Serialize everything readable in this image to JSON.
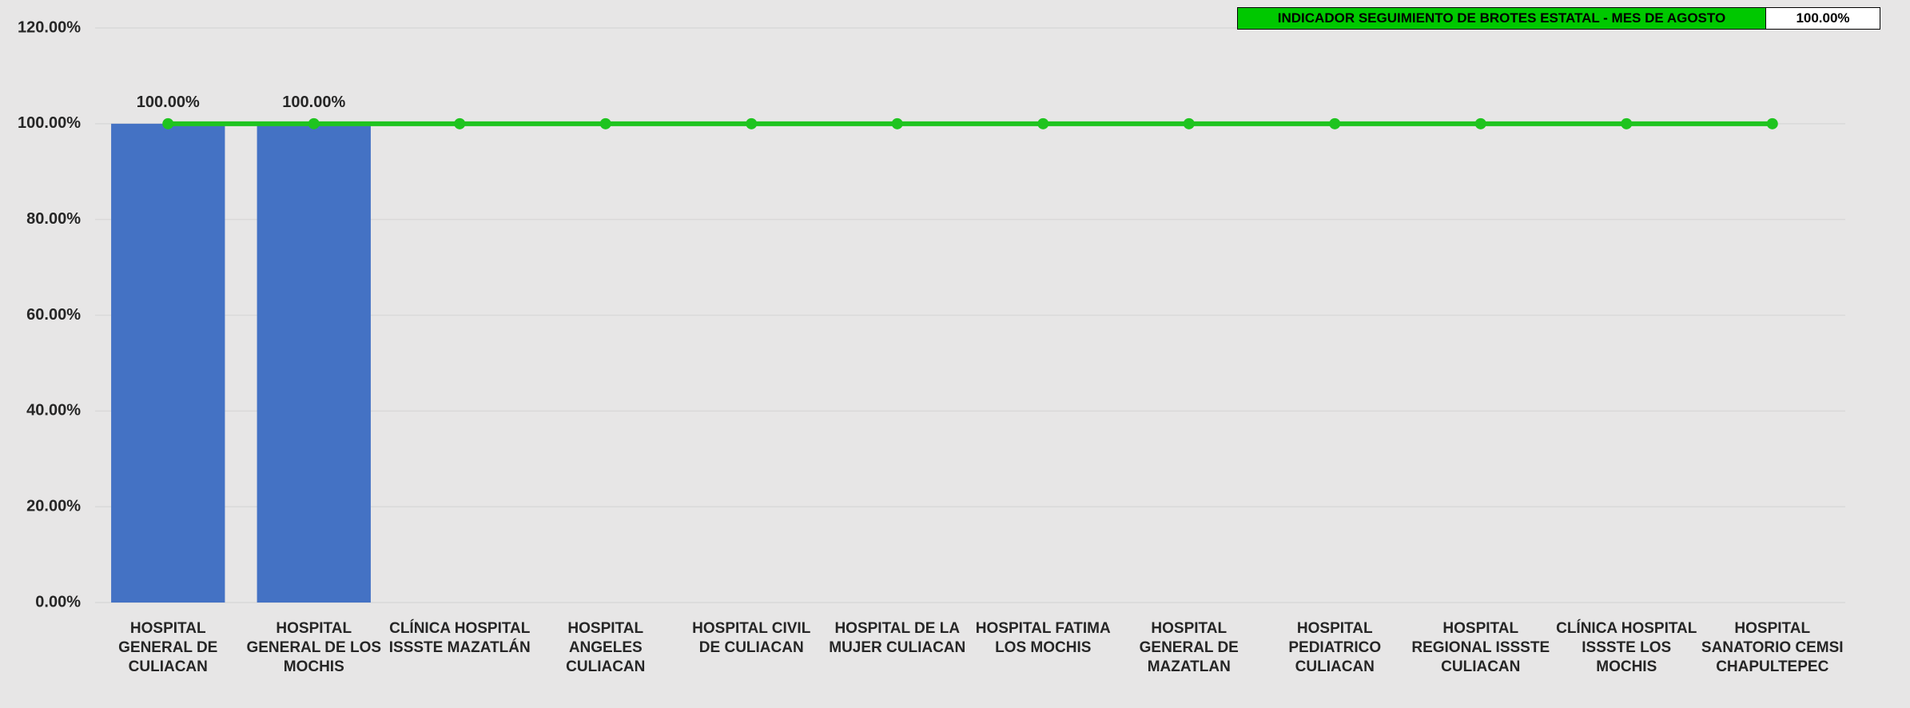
{
  "chart_data": {
    "type": "bar_line",
    "indicator": {
      "label": "INDICADOR SEGUIMIENTO DE BROTES ESTATAL - MES DE AGOSTO",
      "value_label": "100.00%"
    },
    "categories": [
      "HOSPITAL GENERAL DE CULIACAN",
      "HOSPITAL GENERAL DE LOS MOCHIS",
      "CLÍNICA HOSPITAL ISSSTE MAZATLÁN",
      "HOSPITAL ANGELES CULIACAN",
      "HOSPITAL CIVIL DE CULIACAN",
      "HOSPITAL DE LA MUJER CULIACAN",
      "HOSPITAL FATIMA LOS MOCHIS",
      "HOSPITAL GENERAL DE MAZATLAN",
      "HOSPITAL PEDIATRICO CULIACAN",
      "HOSPITAL REGIONAL ISSSTE CULIACAN",
      "CLÍNICA HOSPITAL ISSSTE LOS MOCHIS",
      "HOSPITAL SANATORIO CEMSI CHAPULTEPEC"
    ],
    "bars": {
      "color": "#4472c4",
      "values": [
        100,
        100,
        0,
        0,
        0,
        0,
        0,
        0,
        0,
        0,
        0,
        0
      ],
      "value_labels": [
        "100.00%",
        "100.00%",
        null,
        null,
        null,
        null,
        null,
        null,
        null,
        null,
        null,
        null
      ]
    },
    "line": {
      "color": "#1fc41f",
      "values": [
        100,
        100,
        100,
        100,
        100,
        100,
        100,
        100,
        100,
        100,
        100,
        100
      ]
    },
    "ylim": [
      0,
      120
    ],
    "yticks": [
      {
        "value": 0,
        "label": "0.00%"
      },
      {
        "value": 20,
        "label": "20.00%"
      },
      {
        "value": 40,
        "label": "40.00%"
      },
      {
        "value": 60,
        "label": "60.00%"
      },
      {
        "value": 80,
        "label": "80.00%"
      },
      {
        "value": 100,
        "label": "100.00%"
      },
      {
        "value": 120,
        "label": "120.00%"
      }
    ],
    "grid": true
  }
}
